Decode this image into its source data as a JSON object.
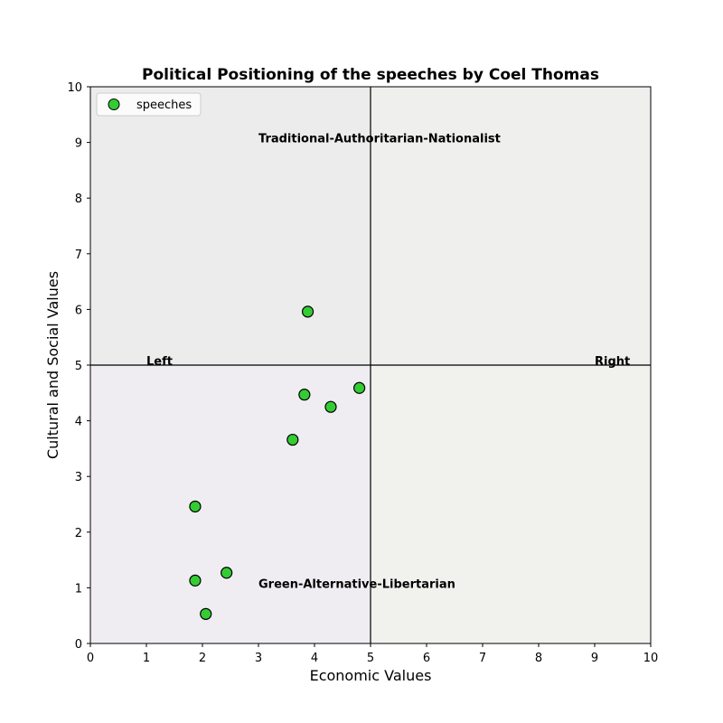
{
  "chart_data": {
    "type": "scatter",
    "title": "Political Positioning of the speeches by Coel Thomas",
    "xlabel": "Economic Values",
    "ylabel": "Cultural and Social Values",
    "xlim": [
      0,
      10
    ],
    "ylim": [
      0,
      10
    ],
    "xticks": [
      "0",
      "1",
      "2",
      "3",
      "4",
      "5",
      "6",
      "7",
      "8",
      "9",
      "10"
    ],
    "yticks": [
      "0",
      "1",
      "2",
      "3",
      "4",
      "5",
      "6",
      "7",
      "8",
      "9",
      "10"
    ],
    "grid": false,
    "legend": {
      "location": "upper-left",
      "entries": [
        "speeches"
      ]
    },
    "divider_lines": {
      "x": 5,
      "y": 5
    },
    "quadrant_colors": {
      "top_left": "#ececec",
      "top_right": "#eff0ed",
      "bottom_left": "#f0edf2",
      "bottom_right": "#f1f2ee"
    },
    "marker_color": "#33cc33",
    "series": [
      {
        "name": "speeches",
        "points": [
          {
            "x": 3.88,
            "y": 5.96
          },
          {
            "x": 4.8,
            "y": 4.59
          },
          {
            "x": 3.82,
            "y": 4.47
          },
          {
            "x": 4.29,
            "y": 4.25
          },
          {
            "x": 3.61,
            "y": 3.66
          },
          {
            "x": 1.87,
            "y": 2.46
          },
          {
            "x": 2.43,
            "y": 1.27
          },
          {
            "x": 1.87,
            "y": 1.13
          },
          {
            "x": 2.06,
            "y": 0.53
          }
        ]
      }
    ],
    "annotations": [
      {
        "text": "Traditional-Authoritarian-Nationalist",
        "x": 3.0,
        "y": 9.0
      },
      {
        "text": "Green-Alternative-Libertarian",
        "x": 3.0,
        "y": 1.0
      },
      {
        "text": "Left",
        "x": 1.0,
        "y": 5.0
      },
      {
        "text": "Right",
        "x": 9.0,
        "y": 5.0
      }
    ]
  }
}
